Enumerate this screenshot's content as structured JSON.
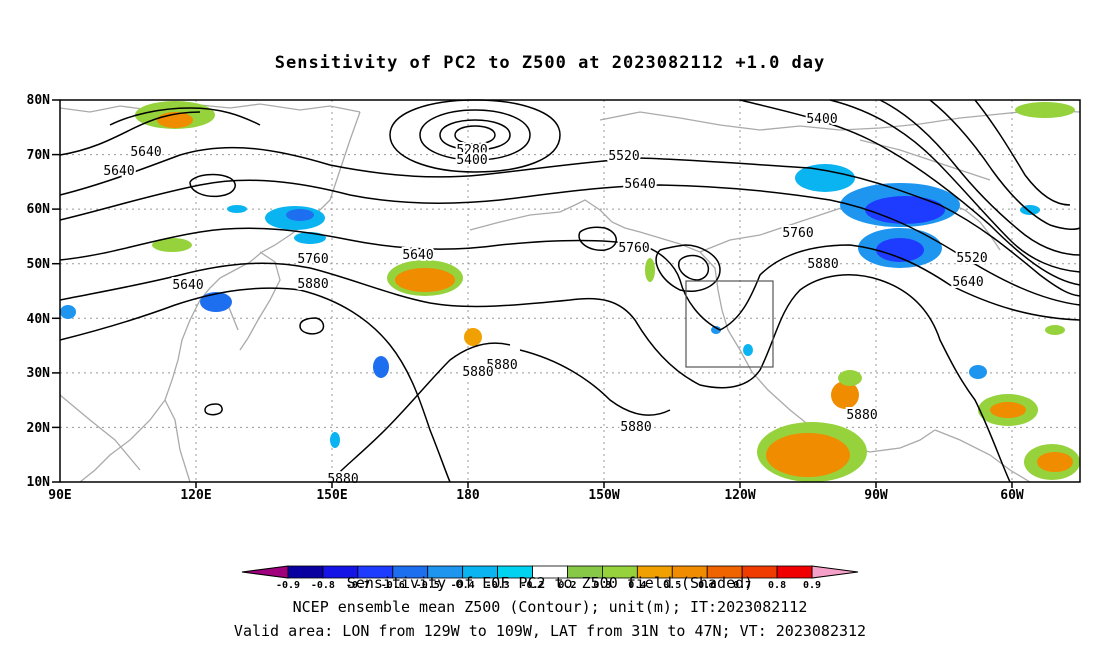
{
  "title": "Sensitivity of PC2 to Z500 at 2023082112 +1.0 day",
  "axes": {
    "lat_labels": [
      "80N",
      "70N",
      "60N",
      "50N",
      "40N",
      "30N",
      "20N",
      "10N"
    ],
    "lon_labels": [
      "90E",
      "120E",
      "150E",
      "180",
      "150W",
      "120W",
      "90W",
      "60W"
    ]
  },
  "contour_labels": [
    "5640",
    "5640",
    "5280",
    "5400",
    "5520",
    "5400",
    "5640",
    "5760",
    "5640",
    "5760",
    "5880",
    "5640",
    "5760",
    "5880",
    "5520",
    "5640",
    "5880",
    "5880",
    "5880",
    "5880",
    "5880"
  ],
  "colorbar": {
    "ticks": [
      "-0.9",
      "-0.8",
      "-0.7",
      "-0.6",
      "-0.5",
      "-0.4",
      "-0.3",
      "-0.2",
      "0.2",
      "0.3",
      "0.4",
      "0.5",
      "0.6",
      "0.7",
      "0.8",
      "0.9"
    ],
    "colors": [
      "#a0007d",
      "#0a00a0",
      "#1414e6",
      "#1e3cff",
      "#1e6ef0",
      "#1e96f0",
      "#0ab4f0",
      "#00d2f0",
      "#ffffff",
      "#87c846",
      "#96d23c",
      "#f0a000",
      "#f08c00",
      "#f06400",
      "#f03c00",
      "#f00000",
      "#f5a0c8"
    ]
  },
  "footer": {
    "line1": "Sensitivity of EOF PC2 to Z500 field (Shaded)",
    "line2": "NCEP ensemble mean Z500 (Contour); unit(m); IT:2023082112",
    "line3": "Valid area: LON from 129W to 109W, LAT from 31N to 47N; VT: 2023082312"
  }
}
